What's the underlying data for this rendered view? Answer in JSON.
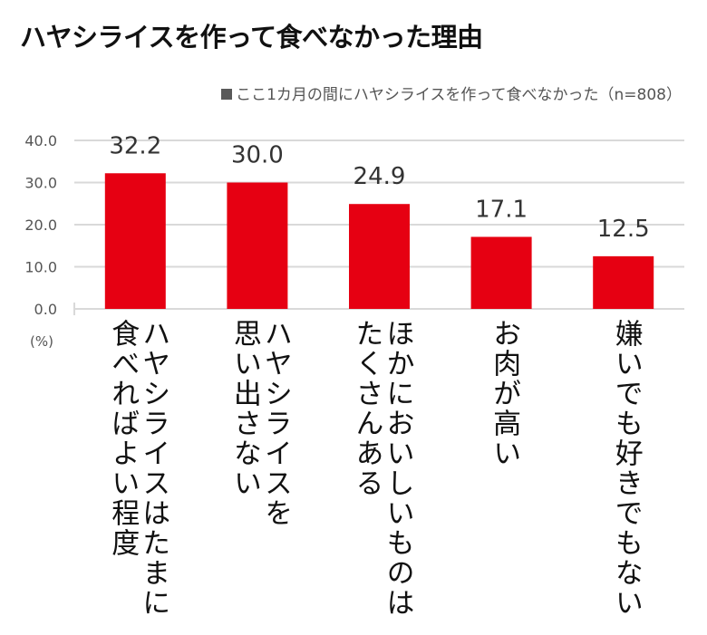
{
  "title": "ハヤシライスを作って食べなかった理由",
  "chart_data": {
    "type": "bar",
    "title": "ハヤシライスを作って食べなかった理由",
    "legend": {
      "label": "ここ1カ月の間にハヤシライスを作って食べなかった（n=808）",
      "placement": "top-right"
    },
    "categories": [
      [
        "ハヤシライスはたまに",
        "食べればよい程度"
      ],
      [
        "ハヤシライスを",
        "思い出さない"
      ],
      [
        "ほかにおいしいものは",
        "たくさんある"
      ],
      [
        "お肉が高い"
      ],
      [
        "嫌いでも好きでもない"
      ]
    ],
    "values": [
      32.2,
      30.0,
      24.9,
      17.1,
      12.5
    ],
    "value_labels": [
      "32.2",
      "30.0",
      "24.9",
      "17.1",
      "12.5"
    ],
    "ylim": [
      0,
      40
    ],
    "yticks": [
      "0.0",
      "10.0",
      "20.0",
      "30.0",
      "40.0"
    ],
    "ylabel": "(%)",
    "grid": true,
    "bar_color": "#e60012",
    "grid_color": "#d9d9d9"
  }
}
